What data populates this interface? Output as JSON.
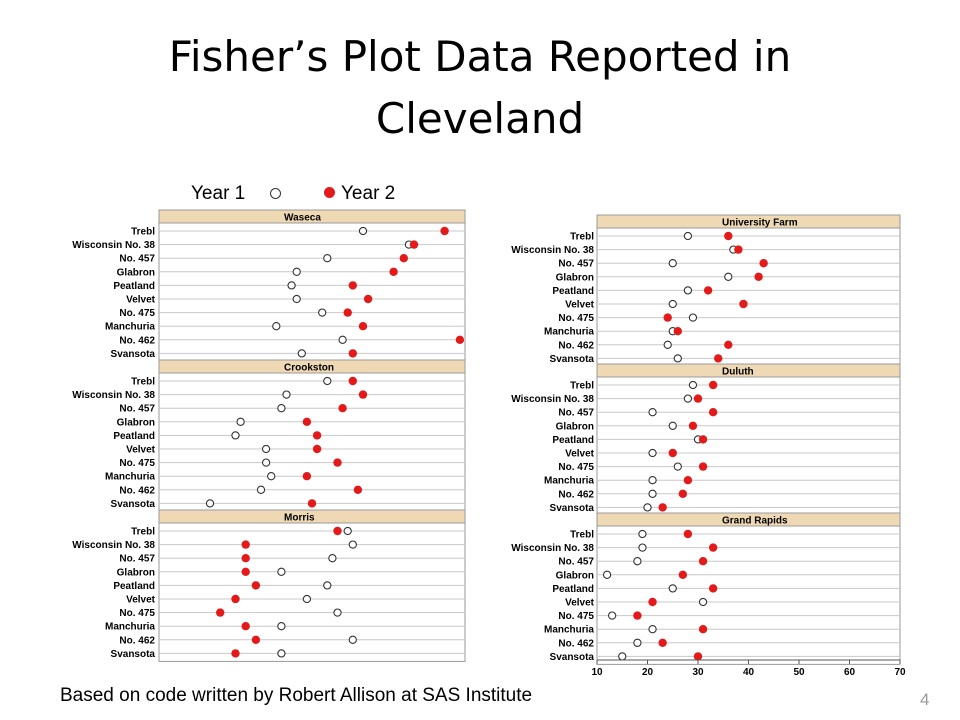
{
  "title": "Fisher’s Plot Data Reported in Cleveland",
  "legend": {
    "year1": "Year 1",
    "year2": "Year 2",
    "year1_marker": "hollow-circle",
    "year2_marker": "filled-circle"
  },
  "footer": "Based on code written by Robert Allison at SAS Institute",
  "slide_number": "4",
  "colors": {
    "panel_header": "#efd9b4",
    "year2_dot": "#e41a1a",
    "year1_ring": "#333333",
    "grid": "#c8c8c8"
  },
  "chart_data": {
    "type": "scatter",
    "xlim": [
      10,
      70
    ],
    "xticks": [
      "10",
      "20",
      "30",
      "40",
      "50",
      "60",
      "70"
    ],
    "varieties": [
      "Trebl",
      "Wisconsin No. 38",
      "No. 457",
      "Glabron",
      "Peatland",
      "Velvet",
      "No. 475",
      "Manchuria",
      "No. 462",
      "Svansota"
    ],
    "series": [
      {
        "name": "Year 1"
      },
      {
        "name": "Year 2"
      }
    ],
    "panels": [
      {
        "site": "Waseca",
        "column": "left",
        "year1": [
          50,
          59,
          43,
          37,
          36,
          37,
          42,
          33,
          46,
          38
        ],
        "year2": [
          66,
          60,
          58,
          56,
          48,
          51,
          47,
          50,
          69,
          48
        ]
      },
      {
        "site": "Crookston",
        "column": "left",
        "year1": [
          43,
          35,
          34,
          26,
          25,
          31,
          31,
          32,
          30,
          20
        ],
        "year2": [
          48,
          50,
          46,
          39,
          41,
          41,
          45,
          39,
          49,
          40
        ]
      },
      {
        "site": "Morris",
        "column": "left",
        "year1": [
          47,
          48,
          44,
          34,
          43,
          39,
          45,
          34,
          48,
          34
        ],
        "year2": [
          45,
          27,
          27,
          27,
          29,
          25,
          22,
          27,
          29,
          25
        ]
      },
      {
        "site": "University Farm",
        "column": "right",
        "year1": [
          28,
          37,
          25,
          36,
          28,
          25,
          29,
          25,
          24,
          26
        ],
        "year2": [
          36,
          38,
          43,
          42,
          32,
          39,
          24,
          26,
          36,
          34
        ]
      },
      {
        "site": "Duluth",
        "column": "right",
        "year1": [
          29,
          28,
          21,
          25,
          30,
          21,
          26,
          21,
          21,
          20
        ],
        "year2": [
          33,
          30,
          33,
          29,
          31,
          25,
          31,
          28,
          27,
          23
        ]
      },
      {
        "site": "Grand Rapids",
        "column": "right",
        "year1": [
          19,
          19,
          18,
          12,
          25,
          31,
          13,
          21,
          18,
          15
        ],
        "year2": [
          28,
          33,
          31,
          27,
          33,
          21,
          18,
          31,
          23,
          30
        ]
      }
    ]
  }
}
